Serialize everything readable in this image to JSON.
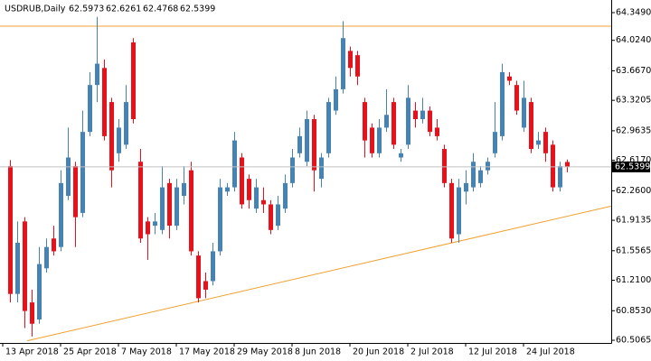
{
  "chart_data": {
    "type": "candlestick",
    "title": "USDRUB,Daily",
    "categories": [
      "13 Apr 2018",
      null,
      null,
      null,
      null,
      null,
      null,
      null,
      "25 Apr 2018",
      null,
      null,
      null,
      null,
      null,
      null,
      null,
      "7 May 2018",
      null,
      null,
      null,
      null,
      null,
      null,
      null,
      "17 May 2018",
      null,
      null,
      null,
      null,
      null,
      null,
      null,
      "29 May 2018",
      null,
      null,
      null,
      null,
      null,
      null,
      null,
      "8 Jun 2018",
      null,
      null,
      null,
      null,
      null,
      null,
      null,
      "20 Jun 2018",
      null,
      null,
      null,
      null,
      null,
      null,
      null,
      "2 Jul 2018",
      null,
      null,
      null,
      null,
      null,
      null,
      null,
      "12 Jul 2018",
      null,
      null,
      null,
      null,
      null,
      null,
      null,
      "24 Jul 2018",
      null,
      null,
      null,
      null,
      null
    ],
    "open": [
      62.55,
      61.05,
      61.9,
      60.95,
      60.75,
      61.35,
      61.7,
      61.6,
      62.2,
      62.55,
      62.0,
      62.95,
      63.5,
      63.7,
      63.3,
      62.7,
      62.8,
      64.0,
      62.6,
      61.9,
      61.85,
      61.8,
      62.35,
      61.85,
      62.2,
      62.5,
      61.5,
      61.2,
      61.2,
      61.55,
      62.25,
      62.3,
      62.65,
      62.4,
      62.05,
      62.15,
      62.1,
      61.85,
      62.05,
      62.35,
      62.7,
      62.6,
      63.1,
      62.4,
      62.7,
      63.2,
      63.45,
      63.9,
      63.85,
      63.3,
      63.0,
      62.7,
      63.0,
      63.3,
      62.65,
      62.8,
      63.2,
      63.1,
      63.2,
      63.0,
      62.75,
      62.35,
      61.75,
      62.25,
      62.3,
      62.35,
      62.5,
      62.7,
      62.9,
      63.6,
      63.5,
      63.0,
      63.3,
      62.8,
      62.95,
      62.8,
      62.3,
      62.5973
    ],
    "high": [
      62.62,
      61.9,
      61.95,
      61.1,
      61.6,
      61.7,
      61.85,
      62.5,
      63.0,
      62.6,
      63.2,
      63.65,
      64.3,
      63.8,
      63.35,
      63.1,
      63.5,
      64.05,
      62.75,
      61.95,
      62.0,
      62.55,
      62.4,
      62.4,
      62.55,
      62.6,
      61.55,
      61.3,
      61.65,
      62.4,
      62.35,
      62.95,
      62.7,
      62.45,
      62.4,
      62.3,
      62.15,
      62.2,
      62.45,
      62.75,
      63.0,
      63.2,
      63.15,
      62.7,
      63.35,
      63.6,
      64.25,
      63.95,
      63.9,
      63.35,
      63.05,
      63.1,
      63.45,
      63.35,
      62.75,
      63.5,
      63.3,
      63.35,
      63.25,
      63.1,
      62.8,
      62.4,
      62.4,
      62.5,
      62.7,
      62.55,
      62.65,
      63.3,
      63.75,
      63.65,
      63.55,
      63.55,
      63.35,
      62.95,
      63.0,
      62.85,
      62.6,
      62.6261
    ],
    "low": [
      60.95,
      60.95,
      60.65,
      60.55,
      60.7,
      61.3,
      61.5,
      61.55,
      62.15,
      61.6,
      61.95,
      62.9,
      63.3,
      62.85,
      62.3,
      62.6,
      62.75,
      63.05,
      61.65,
      61.45,
      61.75,
      61.75,
      61.7,
      61.8,
      62.1,
      61.5,
      60.95,
      61.0,
      61.15,
      61.5,
      62.2,
      62.25,
      62.05,
      62.05,
      62.0,
      62.0,
      61.75,
      61.8,
      62.0,
      62.3,
      62.65,
      62.55,
      62.25,
      62.3,
      62.65,
      63.15,
      63.4,
      63.6,
      63.5,
      62.65,
      62.65,
      62.65,
      62.95,
      62.75,
      62.6,
      62.75,
      63.0,
      63.05,
      62.9,
      62.85,
      62.3,
      61.65,
      61.65,
      62.1,
      62.25,
      62.3,
      62.45,
      62.65,
      62.85,
      63.5,
      63.15,
      62.95,
      62.7,
      62.75,
      62.6,
      62.25,
      62.25,
      62.4768
    ],
    "close": [
      61.05,
      61.65,
      60.85,
      60.7,
      61.4,
      61.6,
      61.55,
      62.35,
      62.65,
      61.95,
      62.95,
      63.5,
      63.75,
      62.9,
      62.5,
      63.0,
      63.3,
      63.1,
      61.7,
      61.75,
      61.9,
      62.3,
      61.85,
      62.3,
      62.35,
      61.55,
      61.0,
      61.1,
      61.55,
      62.3,
      62.3,
      62.85,
      62.1,
      62.15,
      62.3,
      62.1,
      61.8,
      62.1,
      62.35,
      62.65,
      62.9,
      63.1,
      62.5,
      62.65,
      63.3,
      63.45,
      64.05,
      63.7,
      63.6,
      62.85,
      62.7,
      63.0,
      63.15,
      62.8,
      62.7,
      63.35,
      63.1,
      63.2,
      62.95,
      62.9,
      62.35,
      61.7,
      62.3,
      62.35,
      62.6,
      62.5,
      62.6,
      62.95,
      63.65,
      63.55,
      63.2,
      63.35,
      62.75,
      62.85,
      62.7,
      62.3,
      62.55,
      62.5399
    ],
    "up_color": "#4682b4",
    "down_color": "#e8101b",
    "hline": 64.19,
    "trendline": [
      60.5,
      62.08
    ],
    "line_color": "#f0a030",
    "ylim": [
      60.475,
      64.497
    ],
    "yticks": [
      {
        "value": 64.349,
        "label": "64.3490"
      },
      {
        "value": 64.024,
        "label": "64.0240"
      },
      {
        "value": 63.667,
        "label": "63.6670"
      },
      63.3205,
      62.9635,
      {
        "value": 62.617,
        "label": "62.6170"
      },
      {
        "value": 62.26,
        "label": "62.2600"
      },
      61.9135,
      61.5565,
      {
        "value": 61.21,
        "label": "61.2100"
      },
      {
        "value": 60.853,
        "label": "60.8530"
      },
      60.5065
    ]
  }
}
